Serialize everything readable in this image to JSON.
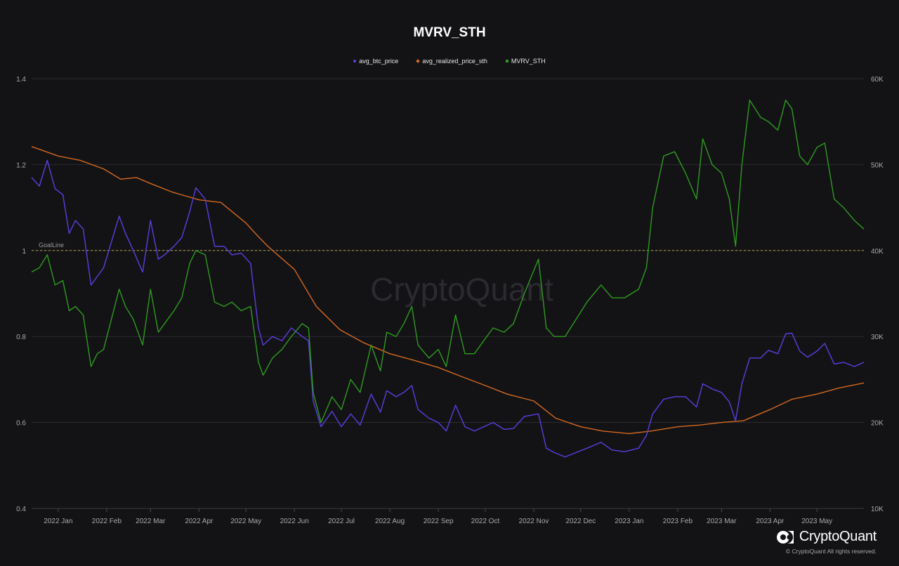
{
  "brand": {
    "name": "CryptoQuant",
    "copyright": "© CryptoQuant All rights reserved."
  },
  "colors": {
    "background": "#131316",
    "grid": "#2c2c31",
    "btc_price": "#5b3ee0",
    "realized_price": "#d4681f",
    "mvrv": "#2f9a1f",
    "goal_line": "#b5a33a"
  },
  "chart_data": {
    "type": "line",
    "title": "MVRV_STH",
    "legend": [
      "avg_btc_price",
      "avg_realized_price_sth",
      "MVRV_STH"
    ],
    "legend_placement": "top-center",
    "grid": true,
    "x_start": "2021-12-15",
    "x_end": "2023-05-31",
    "x_ticks": [
      {
        "date": "2022-01-01",
        "label": "2022 Jan"
      },
      {
        "date": "2022-02-01",
        "label": "2022 Feb"
      },
      {
        "date": "2022-03-01",
        "label": "2022 Mar"
      },
      {
        "date": "2022-04-01",
        "label": "2022 Apr"
      },
      {
        "date": "2022-05-01",
        "label": "2022 May"
      },
      {
        "date": "2022-06-01",
        "label": "2022 Jun"
      },
      {
        "date": "2022-07-01",
        "label": "2022 Jul"
      },
      {
        "date": "2022-08-01",
        "label": "2022 Aug"
      },
      {
        "date": "2022-09-01",
        "label": "2022 Sep"
      },
      {
        "date": "2022-10-01",
        "label": "2022 Oct"
      },
      {
        "date": "2022-11-01",
        "label": "2022 Nov"
      },
      {
        "date": "2022-12-01",
        "label": "2022 Dec"
      },
      {
        "date": "2023-01-01",
        "label": "2023 Jan"
      },
      {
        "date": "2023-02-01",
        "label": "2023 Feb"
      },
      {
        "date": "2023-03-01",
        "label": "2023 Mar"
      },
      {
        "date": "2023-04-01",
        "label": "2023 Apr"
      },
      {
        "date": "2023-05-01",
        "label": "2023 May"
      }
    ],
    "y_left": {
      "ylim": [
        0.4,
        1.4
      ],
      "ticks": [
        "0.4",
        "0.6",
        "0.8",
        "1",
        "1.2",
        "1.4"
      ]
    },
    "y_right": {
      "ylim": [
        10000,
        60000
      ],
      "ticks": [
        "10K",
        "20K",
        "30K",
        "40K",
        "50K",
        "60K"
      ]
    },
    "annotations": [
      {
        "label": "GoalLine",
        "y": 1.0,
        "axis": "left"
      }
    ],
    "series": [
      {
        "name": "avg_btc_price",
        "axis": "right",
        "points": [
          [
            "2021-12-15",
            48500
          ],
          [
            "2021-12-20",
            47500
          ],
          [
            "2021-12-25",
            50500
          ],
          [
            "2021-12-30",
            47200
          ],
          [
            "2022-01-04",
            46500
          ],
          [
            "2022-01-08",
            42000
          ],
          [
            "2022-01-12",
            43500
          ],
          [
            "2022-01-17",
            42500
          ],
          [
            "2022-01-22",
            36000
          ],
          [
            "2022-01-26",
            37000
          ],
          [
            "2022-01-30",
            38000
          ],
          [
            "2022-02-04",
            41000
          ],
          [
            "2022-02-09",
            44000
          ],
          [
            "2022-02-13",
            42000
          ],
          [
            "2022-02-18",
            40000
          ],
          [
            "2022-02-24",
            37500
          ],
          [
            "2022-03-01",
            43500
          ],
          [
            "2022-03-06",
            39000
          ],
          [
            "2022-03-10",
            39500
          ],
          [
            "2022-03-16",
            40500
          ],
          [
            "2022-03-21",
            41500
          ],
          [
            "2022-03-26",
            44500
          ],
          [
            "2022-03-30",
            47300
          ],
          [
            "2022-04-05",
            46000
          ],
          [
            "2022-04-11",
            40500
          ],
          [
            "2022-04-17",
            40500
          ],
          [
            "2022-04-22",
            39500
          ],
          [
            "2022-04-28",
            39700
          ],
          [
            "2022-05-04",
            38500
          ],
          [
            "2022-05-09",
            31000
          ],
          [
            "2022-05-12",
            29000
          ],
          [
            "2022-05-18",
            30000
          ],
          [
            "2022-05-24",
            29500
          ],
          [
            "2022-05-30",
            31000
          ],
          [
            "2022-06-06",
            30000
          ],
          [
            "2022-06-10",
            29500
          ],
          [
            "2022-06-13",
            22500
          ],
          [
            "2022-06-18",
            19500
          ],
          [
            "2022-06-25",
            21300
          ],
          [
            "2022-07-01",
            19500
          ],
          [
            "2022-07-07",
            21000
          ],
          [
            "2022-07-13",
            19700
          ],
          [
            "2022-07-20",
            23300
          ],
          [
            "2022-07-26",
            21200
          ],
          [
            "2022-07-30",
            23700
          ],
          [
            "2022-08-05",
            23000
          ],
          [
            "2022-08-10",
            23500
          ],
          [
            "2022-08-15",
            24300
          ],
          [
            "2022-08-19",
            21500
          ],
          [
            "2022-08-26",
            20500
          ],
          [
            "2022-09-01",
            20000
          ],
          [
            "2022-09-06",
            19000
          ],
          [
            "2022-09-12",
            22000
          ],
          [
            "2022-09-18",
            19500
          ],
          [
            "2022-09-24",
            19000
          ],
          [
            "2022-09-30",
            19500
          ],
          [
            "2022-10-06",
            20000
          ],
          [
            "2022-10-13",
            19200
          ],
          [
            "2022-10-19",
            19300
          ],
          [
            "2022-10-26",
            20700
          ],
          [
            "2022-11-04",
            21000
          ],
          [
            "2022-11-09",
            17000
          ],
          [
            "2022-11-14",
            16500
          ],
          [
            "2022-11-21",
            16000
          ],
          [
            "2022-11-28",
            16500
          ],
          [
            "2022-12-05",
            17000
          ],
          [
            "2022-12-14",
            17700
          ],
          [
            "2022-12-21",
            16800
          ],
          [
            "2022-12-29",
            16600
          ],
          [
            "2023-01-07",
            17000
          ],
          [
            "2023-01-12",
            18500
          ],
          [
            "2023-01-16",
            21000
          ],
          [
            "2023-01-23",
            22700
          ],
          [
            "2023-01-30",
            23000
          ],
          [
            "2023-02-06",
            23000
          ],
          [
            "2023-02-13",
            21800
          ],
          [
            "2023-02-17",
            24500
          ],
          [
            "2023-02-23",
            23900
          ],
          [
            "2023-03-01",
            23500
          ],
          [
            "2023-03-06",
            22400
          ],
          [
            "2023-03-10",
            20200
          ],
          [
            "2023-03-14",
            24500
          ],
          [
            "2023-03-19",
            27500
          ],
          [
            "2023-03-26",
            27500
          ],
          [
            "2023-03-31",
            28400
          ],
          [
            "2023-04-06",
            28000
          ],
          [
            "2023-04-11",
            30300
          ],
          [
            "2023-04-15",
            30400
          ],
          [
            "2023-04-20",
            28300
          ],
          [
            "2023-04-25",
            27600
          ],
          [
            "2023-05-01",
            28300
          ],
          [
            "2023-05-06",
            29200
          ],
          [
            "2023-05-12",
            26800
          ],
          [
            "2023-05-18",
            27000
          ],
          [
            "2023-05-25",
            26500
          ],
          [
            "2023-05-31",
            27000
          ]
        ]
      },
      {
        "name": "avg_realized_price_sth",
        "axis": "right",
        "points": [
          [
            "2021-12-15",
            52100
          ],
          [
            "2022-01-01",
            51000
          ],
          [
            "2022-01-15",
            50500
          ],
          [
            "2022-01-30",
            49500
          ],
          [
            "2022-02-10",
            48300
          ],
          [
            "2022-02-20",
            48500
          ],
          [
            "2022-03-01",
            47800
          ],
          [
            "2022-03-15",
            46800
          ],
          [
            "2022-04-01",
            45900
          ],
          [
            "2022-04-15",
            45600
          ],
          [
            "2022-05-01",
            43200
          ],
          [
            "2022-05-08",
            41800
          ],
          [
            "2022-05-15",
            40500
          ],
          [
            "2022-06-01",
            37800
          ],
          [
            "2022-06-15",
            33500
          ],
          [
            "2022-06-30",
            30800
          ],
          [
            "2022-07-15",
            29300
          ],
          [
            "2022-08-01",
            28000
          ],
          [
            "2022-08-15",
            27300
          ],
          [
            "2022-09-01",
            26400
          ],
          [
            "2022-09-15",
            25400
          ],
          [
            "2022-10-01",
            24300
          ],
          [
            "2022-10-15",
            23300
          ],
          [
            "2022-11-01",
            22500
          ],
          [
            "2022-11-15",
            20500
          ],
          [
            "2022-12-01",
            19500
          ],
          [
            "2022-12-15",
            19000
          ],
          [
            "2023-01-01",
            18700
          ],
          [
            "2023-01-15",
            19000
          ],
          [
            "2023-02-01",
            19500
          ],
          [
            "2023-02-15",
            19700
          ],
          [
            "2023-03-01",
            20000
          ],
          [
            "2023-03-15",
            20200
          ],
          [
            "2023-04-01",
            21500
          ],
          [
            "2023-04-15",
            22700
          ],
          [
            "2023-05-01",
            23300
          ],
          [
            "2023-05-15",
            24000
          ],
          [
            "2023-05-31",
            24600
          ]
        ]
      },
      {
        "name": "MVRV_STH",
        "axis": "left",
        "points": [
          [
            "2021-12-15",
            0.95
          ],
          [
            "2021-12-20",
            0.96
          ],
          [
            "2021-12-25",
            0.99
          ],
          [
            "2021-12-30",
            0.92
          ],
          [
            "2022-01-04",
            0.93
          ],
          [
            "2022-01-08",
            0.86
          ],
          [
            "2022-01-12",
            0.87
          ],
          [
            "2022-01-17",
            0.85
          ],
          [
            "2022-01-22",
            0.73
          ],
          [
            "2022-01-26",
            0.76
          ],
          [
            "2022-01-30",
            0.77
          ],
          [
            "2022-02-04",
            0.84
          ],
          [
            "2022-02-09",
            0.91
          ],
          [
            "2022-02-13",
            0.87
          ],
          [
            "2022-02-18",
            0.84
          ],
          [
            "2022-02-24",
            0.78
          ],
          [
            "2022-03-01",
            0.91
          ],
          [
            "2022-03-06",
            0.81
          ],
          [
            "2022-03-10",
            0.83
          ],
          [
            "2022-03-16",
            0.86
          ],
          [
            "2022-03-21",
            0.89
          ],
          [
            "2022-03-26",
            0.97
          ],
          [
            "2022-03-30",
            1.0
          ],
          [
            "2022-04-05",
            0.99
          ],
          [
            "2022-04-11",
            0.88
          ],
          [
            "2022-04-17",
            0.87
          ],
          [
            "2022-04-22",
            0.88
          ],
          [
            "2022-04-28",
            0.86
          ],
          [
            "2022-05-04",
            0.87
          ],
          [
            "2022-05-09",
            0.74
          ],
          [
            "2022-05-12",
            0.71
          ],
          [
            "2022-05-18",
            0.75
          ],
          [
            "2022-05-24",
            0.77
          ],
          [
            "2022-05-30",
            0.8
          ],
          [
            "2022-06-06",
            0.83
          ],
          [
            "2022-06-10",
            0.82
          ],
          [
            "2022-06-13",
            0.67
          ],
          [
            "2022-06-18",
            0.6
          ],
          [
            "2022-06-25",
            0.66
          ],
          [
            "2022-07-01",
            0.63
          ],
          [
            "2022-07-07",
            0.7
          ],
          [
            "2022-07-13",
            0.67
          ],
          [
            "2022-07-20",
            0.78
          ],
          [
            "2022-07-26",
            0.72
          ],
          [
            "2022-07-30",
            0.81
          ],
          [
            "2022-08-05",
            0.8
          ],
          [
            "2022-08-10",
            0.83
          ],
          [
            "2022-08-15",
            0.87
          ],
          [
            "2022-08-19",
            0.78
          ],
          [
            "2022-08-26",
            0.75
          ],
          [
            "2022-09-01",
            0.77
          ],
          [
            "2022-09-06",
            0.73
          ],
          [
            "2022-09-12",
            0.85
          ],
          [
            "2022-09-18",
            0.76
          ],
          [
            "2022-09-24",
            0.76
          ],
          [
            "2022-09-30",
            0.79
          ],
          [
            "2022-10-06",
            0.82
          ],
          [
            "2022-10-13",
            0.81
          ],
          [
            "2022-10-19",
            0.83
          ],
          [
            "2022-10-26",
            0.9
          ],
          [
            "2022-11-04",
            0.98
          ],
          [
            "2022-11-09",
            0.82
          ],
          [
            "2022-11-14",
            0.8
          ],
          [
            "2022-11-21",
            0.8
          ],
          [
            "2022-11-28",
            0.84
          ],
          [
            "2022-12-05",
            0.88
          ],
          [
            "2022-12-14",
            0.92
          ],
          [
            "2022-12-21",
            0.89
          ],
          [
            "2022-12-29",
            0.89
          ],
          [
            "2023-01-07",
            0.91
          ],
          [
            "2023-01-12",
            0.96
          ],
          [
            "2023-01-16",
            1.1
          ],
          [
            "2023-01-23",
            1.22
          ],
          [
            "2023-01-30",
            1.23
          ],
          [
            "2023-02-06",
            1.18
          ],
          [
            "2023-02-13",
            1.12
          ],
          [
            "2023-02-17",
            1.26
          ],
          [
            "2023-02-23",
            1.2
          ],
          [
            "2023-03-01",
            1.18
          ],
          [
            "2023-03-06",
            1.12
          ],
          [
            "2023-03-10",
            1.01
          ],
          [
            "2023-03-14",
            1.2
          ],
          [
            "2023-03-19",
            1.35
          ],
          [
            "2023-03-26",
            1.31
          ],
          [
            "2023-03-31",
            1.3
          ],
          [
            "2023-04-06",
            1.28
          ],
          [
            "2023-04-11",
            1.35
          ],
          [
            "2023-04-15",
            1.33
          ],
          [
            "2023-04-20",
            1.22
          ],
          [
            "2023-04-25",
            1.2
          ],
          [
            "2023-05-01",
            1.24
          ],
          [
            "2023-05-06",
            1.25
          ],
          [
            "2023-05-12",
            1.12
          ],
          [
            "2023-05-18",
            1.1
          ],
          [
            "2023-05-25",
            1.07
          ],
          [
            "2023-05-31",
            1.05
          ]
        ]
      }
    ]
  }
}
